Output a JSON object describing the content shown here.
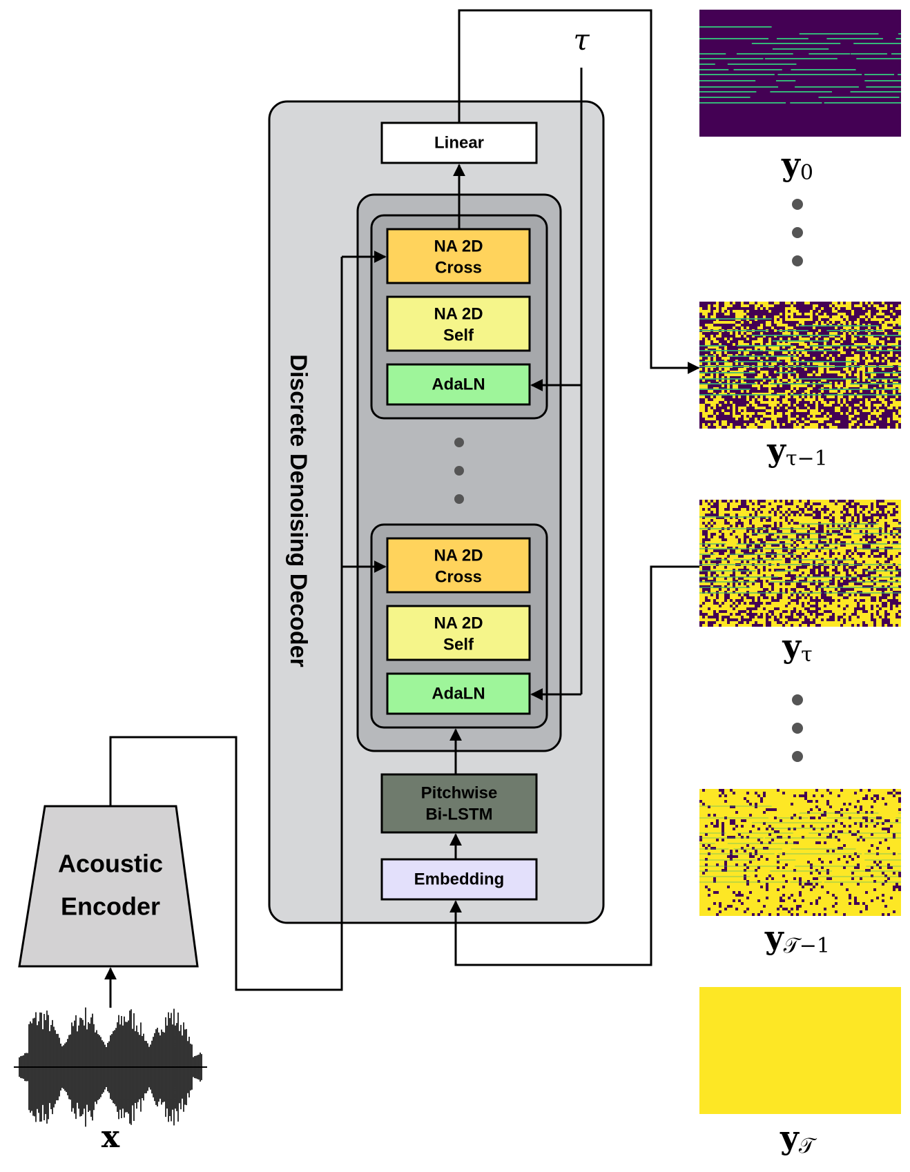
{
  "decoder": {
    "title": "Discrete Denoising Decoder"
  },
  "blocks": {
    "linear": "Linear",
    "na_cross_line1": "NA 2D",
    "na_cross_line2": "Cross",
    "na_self_line1": "NA 2D",
    "na_self_line2": "Self",
    "adaln": "AdaLN",
    "bilstm_line1": "Pitchwise",
    "bilstm_line2": "Bi-LSTM",
    "embedding": "Embedding"
  },
  "encoder": {
    "line1": "Acoustic",
    "line2": "Encoder"
  },
  "symbols": {
    "tau": "τ",
    "x": "x",
    "y_base": "y",
    "y0_sub": "0",
    "y_tau_minus1_sub": "τ−1",
    "y_tau_sub": "τ",
    "y_T_minus1_sub": "𝒯−1",
    "y_T_sub": "𝒯"
  },
  "colors": {
    "purple": "#440154",
    "yellow": "#fde725",
    "teal": "#35b779",
    "cross_block": "#ffd35c",
    "self_block": "#f5f58a",
    "adaln_block": "#9ef59a",
    "bilstm_block": "#6f7b6d",
    "embedding_block": "#e3e0fb",
    "decoder_bg": "#d6d7d9",
    "stack_bg": "#b7b9bc",
    "layer_bg": "#a6a8ab"
  }
}
